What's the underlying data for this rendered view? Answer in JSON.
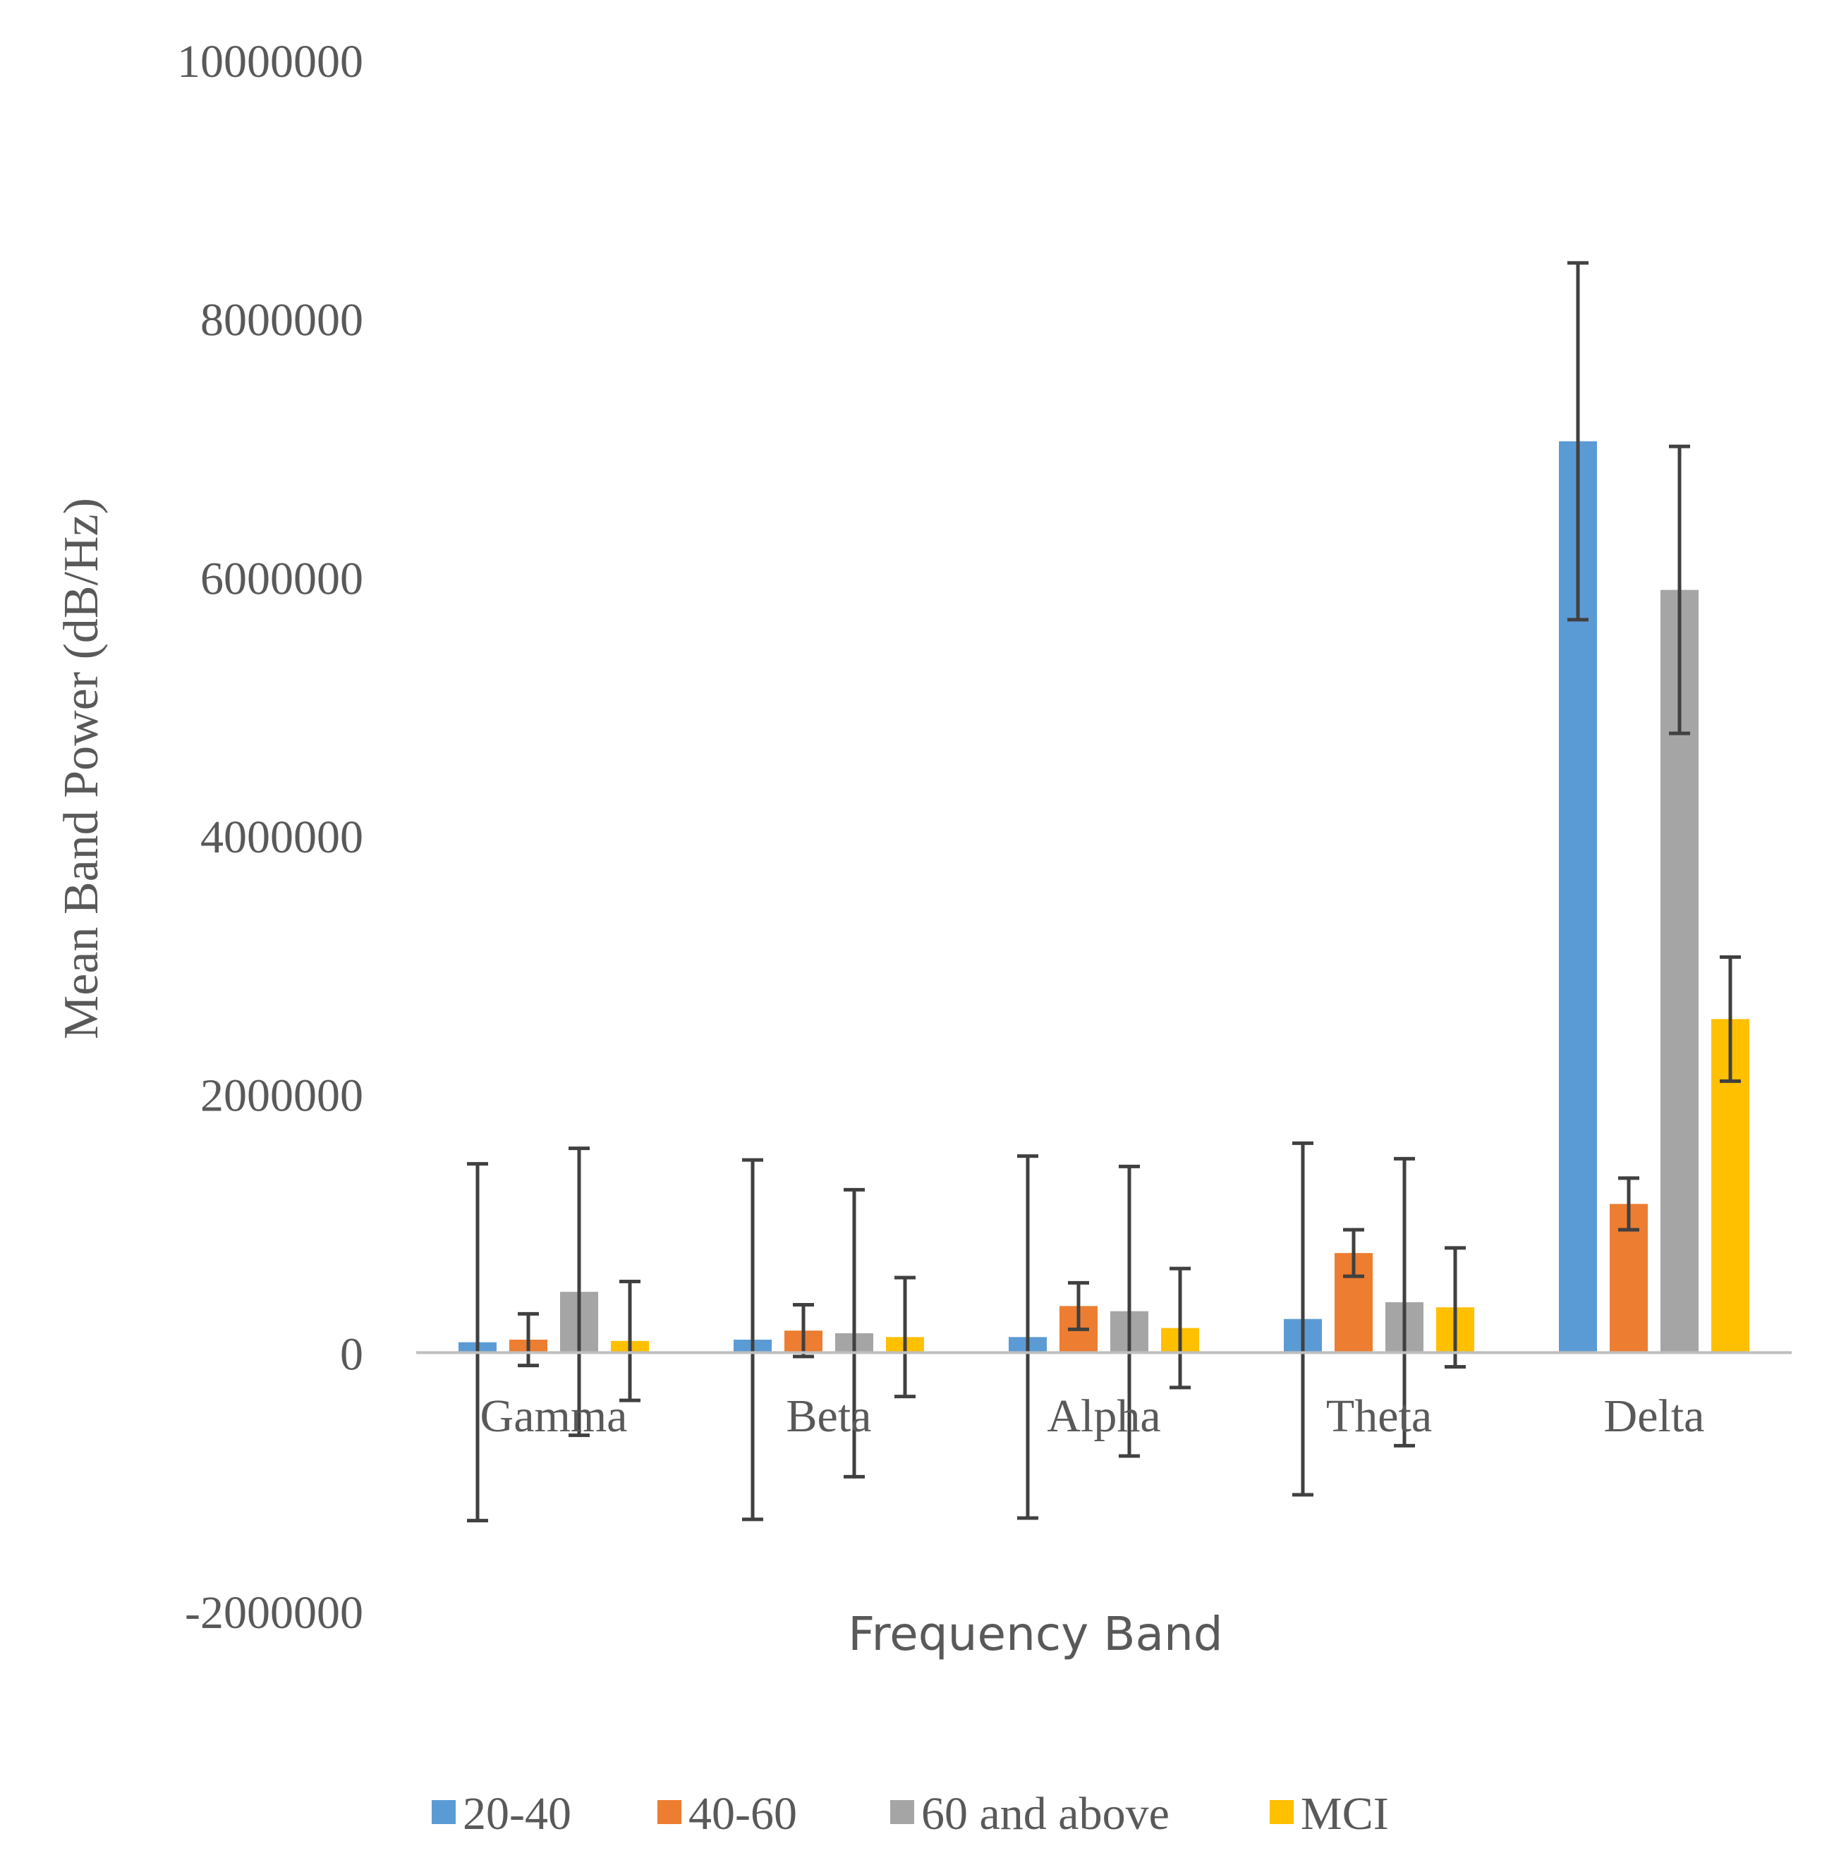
{
  "chart_data": {
    "type": "bar",
    "title": "",
    "xlabel": "Frequency Band",
    "ylabel": "Mean Band Power (dB/Hz)",
    "ylim": [
      -2000000,
      10000000
    ],
    "yticks": [
      -2000000,
      0,
      2000000,
      4000000,
      6000000,
      8000000,
      10000000
    ],
    "ytick_labels": [
      "-2000000",
      "0",
      "2000000",
      "4000000",
      "6000000",
      "8000000",
      "10000000"
    ],
    "grid": false,
    "legend_position": "bottom",
    "categories": [
      "Gamma",
      "Beta",
      "Alpha",
      "Theta",
      "Delta"
    ],
    "series": [
      {
        "name": "20-40",
        "color": "#5B9BD5",
        "values": [
          80000,
          100000,
          120000,
          260000,
          7050000
        ],
        "errors": [
          1380000,
          1390000,
          1400000,
          1360000,
          1380000
        ]
      },
      {
        "name": "40-60",
        "color": "#ED7D31",
        "values": [
          100000,
          170000,
          360000,
          770000,
          1150000
        ],
        "errors": [
          200000,
          200000,
          180000,
          180000,
          200000
        ]
      },
      {
        "name": "60 and above",
        "color": "#A5A5A5",
        "values": [
          470000,
          150000,
          320000,
          390000,
          5900000
        ],
        "errors": [
          1110000,
          1110000,
          1120000,
          1110000,
          1110000
        ]
      },
      {
        "name": "MCI",
        "color": "#FFC000",
        "values": [
          90000,
          120000,
          190000,
          350000,
          2580000
        ],
        "errors": [
          460000,
          460000,
          460000,
          460000,
          480000
        ]
      }
    ]
  }
}
